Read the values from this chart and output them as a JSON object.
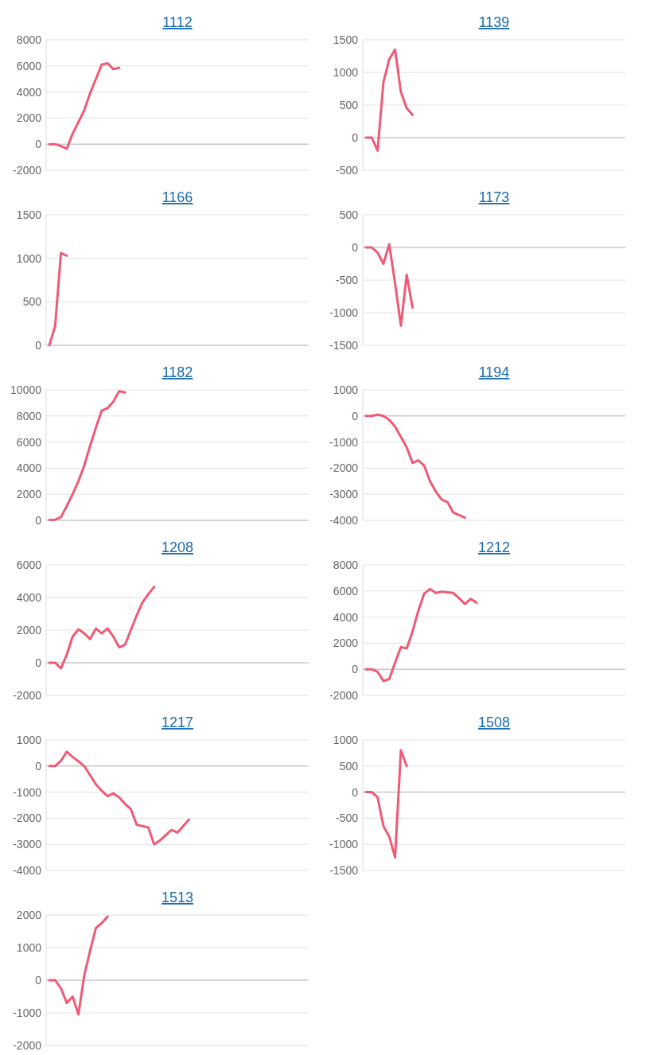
{
  "chart_data": [
    {
      "type": "line",
      "title": "1112",
      "categories": [
        null,
        null,
        null,
        null,
        null,
        null,
        null,
        null,
        null,
        null,
        null,
        null,
        null,
        null,
        null,
        null,
        null,
        null,
        null,
        null,
        null,
        null,
        null,
        null,
        null,
        null,
        null,
        null,
        null,
        null,
        null,
        null,
        null,
        null,
        null,
        null,
        null,
        null,
        null,
        null,
        null,
        null,
        null,
        null,
        null
      ],
      "series": [
        {
          "color": "#ef5a76",
          "values": [
            0,
            0,
            -150,
            -350,
            800,
            1700,
            2600,
            3900,
            5000,
            6100,
            6200,
            5750,
            5850,
            null,
            null,
            null,
            null,
            null,
            null,
            null,
            null,
            null,
            null,
            null,
            null,
            null,
            null,
            null,
            null,
            null,
            null,
            null,
            null,
            null,
            null,
            null,
            null,
            null,
            null,
            null,
            null,
            null,
            null,
            null,
            null
          ]
        }
      ],
      "ylim": [
        -2000,
        8000
      ],
      "yticks": [
        -2000,
        0,
        2000,
        4000,
        6000,
        8000
      ],
      "grid": "y",
      "marker": "none",
      "tick_labels": "y"
    },
    {
      "type": "line",
      "title": "1139",
      "categories": [
        null,
        null,
        null,
        null,
        null,
        null,
        null,
        null,
        null,
        null,
        null,
        null,
        null,
        null,
        null,
        null,
        null,
        null,
        null,
        null,
        null,
        null,
        null,
        null,
        null,
        null,
        null,
        null,
        null,
        null,
        null,
        null,
        null,
        null,
        null,
        null,
        null,
        null,
        null,
        null,
        null,
        null,
        null,
        null,
        null
      ],
      "series": [
        {
          "color": "#ef5a76",
          "values": [
            0,
            0,
            -200,
            850,
            1200,
            1350,
            700,
            450,
            350,
            null,
            null,
            null,
            null,
            null,
            null,
            null,
            null,
            null,
            null,
            null,
            null,
            null,
            null,
            null,
            null,
            null,
            null,
            null,
            null,
            null,
            null,
            null,
            null,
            null,
            null,
            null,
            null,
            null,
            null,
            null,
            null,
            null,
            null,
            null,
            null
          ]
        }
      ],
      "ylim": [
        -500,
        1500
      ],
      "yticks": [
        -500,
        0,
        500,
        1000,
        1500
      ],
      "grid": "y",
      "marker": "none",
      "tick_labels": "y"
    },
    {
      "type": "line",
      "title": "1166",
      "categories": [
        null,
        null,
        null,
        null,
        null,
        null,
        null,
        null,
        null,
        null,
        null,
        null,
        null,
        null,
        null,
        null,
        null,
        null,
        null,
        null,
        null,
        null,
        null,
        null,
        null,
        null,
        null,
        null,
        null,
        null,
        null,
        null,
        null,
        null,
        null,
        null,
        null,
        null,
        null,
        null,
        null,
        null,
        null,
        null,
        null
      ],
      "series": [
        {
          "color": "#ef5a76",
          "values": [
            0,
            220,
            1060,
            1030,
            null,
            null,
            null,
            null,
            null,
            null,
            null,
            null,
            null,
            null,
            null,
            null,
            null,
            null,
            null,
            null,
            null,
            null,
            null,
            null,
            null,
            null,
            null,
            null,
            null,
            null,
            null,
            null,
            null,
            null,
            null,
            null,
            null,
            null,
            null,
            null,
            null,
            null,
            null,
            null,
            null
          ]
        }
      ],
      "ylim": [
        0,
        1500
      ],
      "yticks": [
        0,
        500,
        1000,
        1500
      ],
      "grid": "y",
      "marker": "none",
      "tick_labels": "y"
    },
    {
      "type": "line",
      "title": "1173",
      "categories": [
        null,
        null,
        null,
        null,
        null,
        null,
        null,
        null,
        null,
        null,
        null,
        null,
        null,
        null,
        null,
        null,
        null,
        null,
        null,
        null,
        null,
        null,
        null,
        null,
        null,
        null,
        null,
        null,
        null,
        null,
        null,
        null,
        null,
        null,
        null,
        null,
        null,
        null,
        null,
        null,
        null,
        null,
        null,
        null,
        null
      ],
      "series": [
        {
          "color": "#ef5a76",
          "values": [
            0,
            0,
            -80,
            -250,
            50,
            -550,
            -1200,
            -420,
            -920,
            null,
            null,
            null,
            null,
            null,
            null,
            null,
            null,
            null,
            null,
            null,
            null,
            null,
            null,
            null,
            null,
            null,
            null,
            null,
            null,
            null,
            null,
            null,
            null,
            null,
            null,
            null,
            null,
            null,
            null,
            null,
            null,
            null,
            null,
            null,
            null
          ]
        }
      ],
      "ylim": [
        -1500,
        500
      ],
      "yticks": [
        -1500,
        -1000,
        -500,
        0,
        500
      ],
      "grid": "y",
      "marker": "none",
      "tick_labels": "y"
    },
    {
      "type": "line",
      "title": "1182",
      "categories": [
        null,
        null,
        null,
        null,
        null,
        null,
        null,
        null,
        null,
        null,
        null,
        null,
        null,
        null,
        null,
        null,
        null,
        null,
        null,
        null,
        null,
        null,
        null,
        null,
        null,
        null,
        null,
        null,
        null,
        null,
        null,
        null,
        null,
        null,
        null,
        null,
        null,
        null,
        null,
        null,
        null,
        null,
        null,
        null,
        null
      ],
      "series": [
        {
          "color": "#ef5a76",
          "values": [
            30,
            50,
            250,
            1100,
            2000,
            3000,
            4200,
            5700,
            7100,
            8400,
            8600,
            9100,
            9900,
            9800,
            null,
            null,
            null,
            null,
            null,
            null,
            null,
            null,
            null,
            null,
            null,
            null,
            null,
            null,
            null,
            null,
            null,
            null,
            null,
            null,
            null,
            null,
            null,
            null,
            null,
            null,
            null,
            null,
            null,
            null,
            null
          ]
        }
      ],
      "ylim": [
        0,
        10000
      ],
      "yticks": [
        0,
        2000,
        4000,
        6000,
        8000,
        10000
      ],
      "grid": "y",
      "marker": "none",
      "tick_labels": "y"
    },
    {
      "type": "line",
      "title": "1194",
      "categories": [
        null,
        null,
        null,
        null,
        null,
        null,
        null,
        null,
        null,
        null,
        null,
        null,
        null,
        null,
        null,
        null,
        null,
        null,
        null,
        null,
        null,
        null,
        null,
        null,
        null,
        null,
        null,
        null,
        null,
        null,
        null,
        null,
        null,
        null,
        null,
        null,
        null,
        null,
        null,
        null,
        null,
        null,
        null,
        null,
        null
      ],
      "series": [
        {
          "color": "#ef5a76",
          "values": [
            0,
            0,
            50,
            0,
            -150,
            -400,
            -800,
            -1200,
            -1800,
            -1700,
            -1900,
            -2500,
            -2900,
            -3200,
            -3300,
            -3700,
            -3800,
            -3900,
            null,
            null,
            null,
            null,
            null,
            null,
            null,
            null,
            null,
            null,
            null,
            null,
            null,
            null,
            null,
            null,
            null,
            null,
            null,
            null,
            null,
            null,
            null,
            null,
            null,
            null,
            null
          ]
        }
      ],
      "ylim": [
        -4000,
        1000
      ],
      "yticks": [
        -4000,
        -3000,
        -2000,
        -1000,
        0,
        1000
      ],
      "grid": "y",
      "marker": "none",
      "tick_labels": "y"
    },
    {
      "type": "line",
      "title": "1208",
      "categories": [
        null,
        null,
        null,
        null,
        null,
        null,
        null,
        null,
        null,
        null,
        null,
        null,
        null,
        null,
        null,
        null,
        null,
        null,
        null,
        null,
        null,
        null,
        null,
        null,
        null,
        null,
        null,
        null,
        null,
        null,
        null,
        null,
        null,
        null,
        null,
        null,
        null,
        null,
        null,
        null,
        null,
        null,
        null,
        null,
        null
      ],
      "series": [
        {
          "color": "#ef5a76",
          "values": [
            0,
            0,
            -350,
            500,
            1600,
            2050,
            1800,
            1450,
            2100,
            1800,
            2100,
            1600,
            950,
            1100,
            2000,
            2900,
            3700,
            4200,
            4650,
            null,
            null,
            null,
            null,
            null,
            null,
            null,
            null,
            null,
            null,
            null,
            null,
            null,
            null,
            null,
            null,
            null,
            null,
            null,
            null,
            null,
            null,
            null,
            null,
            null,
            null
          ]
        }
      ],
      "ylim": [
        -2000,
        6000
      ],
      "yticks": [
        -2000,
        0,
        2000,
        4000,
        6000
      ],
      "grid": "y",
      "marker": "none",
      "tick_labels": "y"
    },
    {
      "type": "line",
      "title": "1212",
      "categories": [
        null,
        null,
        null,
        null,
        null,
        null,
        null,
        null,
        null,
        null,
        null,
        null,
        null,
        null,
        null,
        null,
        null,
        null,
        null,
        null,
        null,
        null,
        null,
        null,
        null,
        null,
        null,
        null,
        null,
        null,
        null,
        null,
        null,
        null,
        null,
        null,
        null,
        null,
        null,
        null,
        null,
        null,
        null,
        null,
        null
      ],
      "series": [
        {
          "color": "#ef5a76",
          "values": [
            0,
            0,
            -200,
            -900,
            -750,
            500,
            1700,
            1600,
            2900,
            4500,
            5800,
            6150,
            5850,
            5950,
            5900,
            5850,
            5450,
            5000,
            5400,
            5100,
            null,
            null,
            null,
            null,
            null,
            null,
            null,
            null,
            null,
            null,
            null,
            null,
            null,
            null,
            null,
            null,
            null,
            null,
            null,
            null,
            null,
            null,
            null,
            null,
            null
          ]
        }
      ],
      "ylim": [
        -2000,
        8000
      ],
      "yticks": [
        -2000,
        0,
        2000,
        4000,
        6000,
        8000
      ],
      "grid": "y",
      "marker": "none",
      "tick_labels": "y"
    },
    {
      "type": "line",
      "title": "1217",
      "categories": [
        null,
        null,
        null,
        null,
        null,
        null,
        null,
        null,
        null,
        null,
        null,
        null,
        null,
        null,
        null,
        null,
        null,
        null,
        null,
        null,
        null,
        null,
        null,
        null,
        null,
        null,
        null,
        null,
        null,
        null,
        null,
        null,
        null,
        null,
        null,
        null,
        null,
        null,
        null,
        null,
        null,
        null,
        null,
        null,
        null
      ],
      "series": [
        {
          "color": "#ef5a76",
          "values": [
            0,
            0,
            200,
            550,
            350,
            180,
            0,
            -350,
            -700,
            -950,
            -1150,
            -1050,
            -1200,
            -1450,
            -1650,
            -2250,
            -2300,
            -2350,
            -3000,
            -2850,
            -2650,
            -2450,
            -2550,
            -2300,
            -2050,
            null,
            null,
            null,
            null,
            null,
            null,
            null,
            null,
            null,
            null,
            null,
            null,
            null,
            null,
            null,
            null,
            null,
            null,
            null,
            null
          ]
        }
      ],
      "ylim": [
        -4000,
        1000
      ],
      "yticks": [
        -4000,
        -3000,
        -2000,
        -1000,
        0,
        1000
      ],
      "grid": "y",
      "marker": "none",
      "tick_labels": "y"
    },
    {
      "type": "line",
      "title": "1508",
      "categories": [
        null,
        null,
        null,
        null,
        null,
        null,
        null,
        null,
        null,
        null,
        null,
        null,
        null,
        null,
        null,
        null,
        null,
        null,
        null,
        null,
        null,
        null,
        null,
        null,
        null,
        null,
        null,
        null,
        null,
        null,
        null,
        null,
        null,
        null,
        null,
        null,
        null,
        null,
        null,
        null,
        null,
        null,
        null,
        null,
        null
      ],
      "series": [
        {
          "color": "#ef5a76",
          "values": [
            0,
            0,
            -100,
            -650,
            -850,
            -1250,
            800,
            500,
            null,
            null,
            null,
            null,
            null,
            null,
            null,
            null,
            null,
            null,
            null,
            null,
            null,
            null,
            null,
            null,
            null,
            null,
            null,
            null,
            null,
            null,
            null,
            null,
            null,
            null,
            null,
            null,
            null,
            null,
            null,
            null,
            null,
            null,
            null,
            null,
            null
          ]
        }
      ],
      "ylim": [
        -1500,
        1000
      ],
      "yticks": [
        -1500,
        -1000,
        -500,
        0,
        500,
        1000
      ],
      "grid": "y",
      "marker": "none",
      "tick_labels": "y"
    },
    {
      "type": "line",
      "title": "1513",
      "categories": [
        null,
        null,
        null,
        null,
        null,
        null,
        null,
        null,
        null,
        null,
        null,
        null,
        null,
        null,
        null,
        null,
        null,
        null,
        null,
        null,
        null,
        null,
        null,
        null,
        null,
        null,
        null,
        null,
        null,
        null,
        null,
        null,
        null,
        null,
        null,
        null,
        null,
        null,
        null,
        null,
        null,
        null,
        null,
        null,
        null
      ],
      "series": [
        {
          "color": "#ef5a76",
          "values": [
            0,
            0,
            -250,
            -700,
            -500,
            -1050,
            150,
            900,
            1600,
            1750,
            1950,
            null,
            null,
            null,
            null,
            null,
            null,
            null,
            null,
            null,
            null,
            null,
            null,
            null,
            null,
            null,
            null,
            null,
            null,
            null,
            null,
            null,
            null,
            null,
            null,
            null,
            null,
            null,
            null,
            null,
            null,
            null,
            null,
            null,
            null
          ]
        }
      ],
      "ylim": [
        -2000,
        2000
      ],
      "yticks": [
        -2000,
        -1000,
        0,
        1000,
        2000
      ],
      "grid": "y",
      "marker": "none",
      "tick_labels": "y"
    }
  ]
}
